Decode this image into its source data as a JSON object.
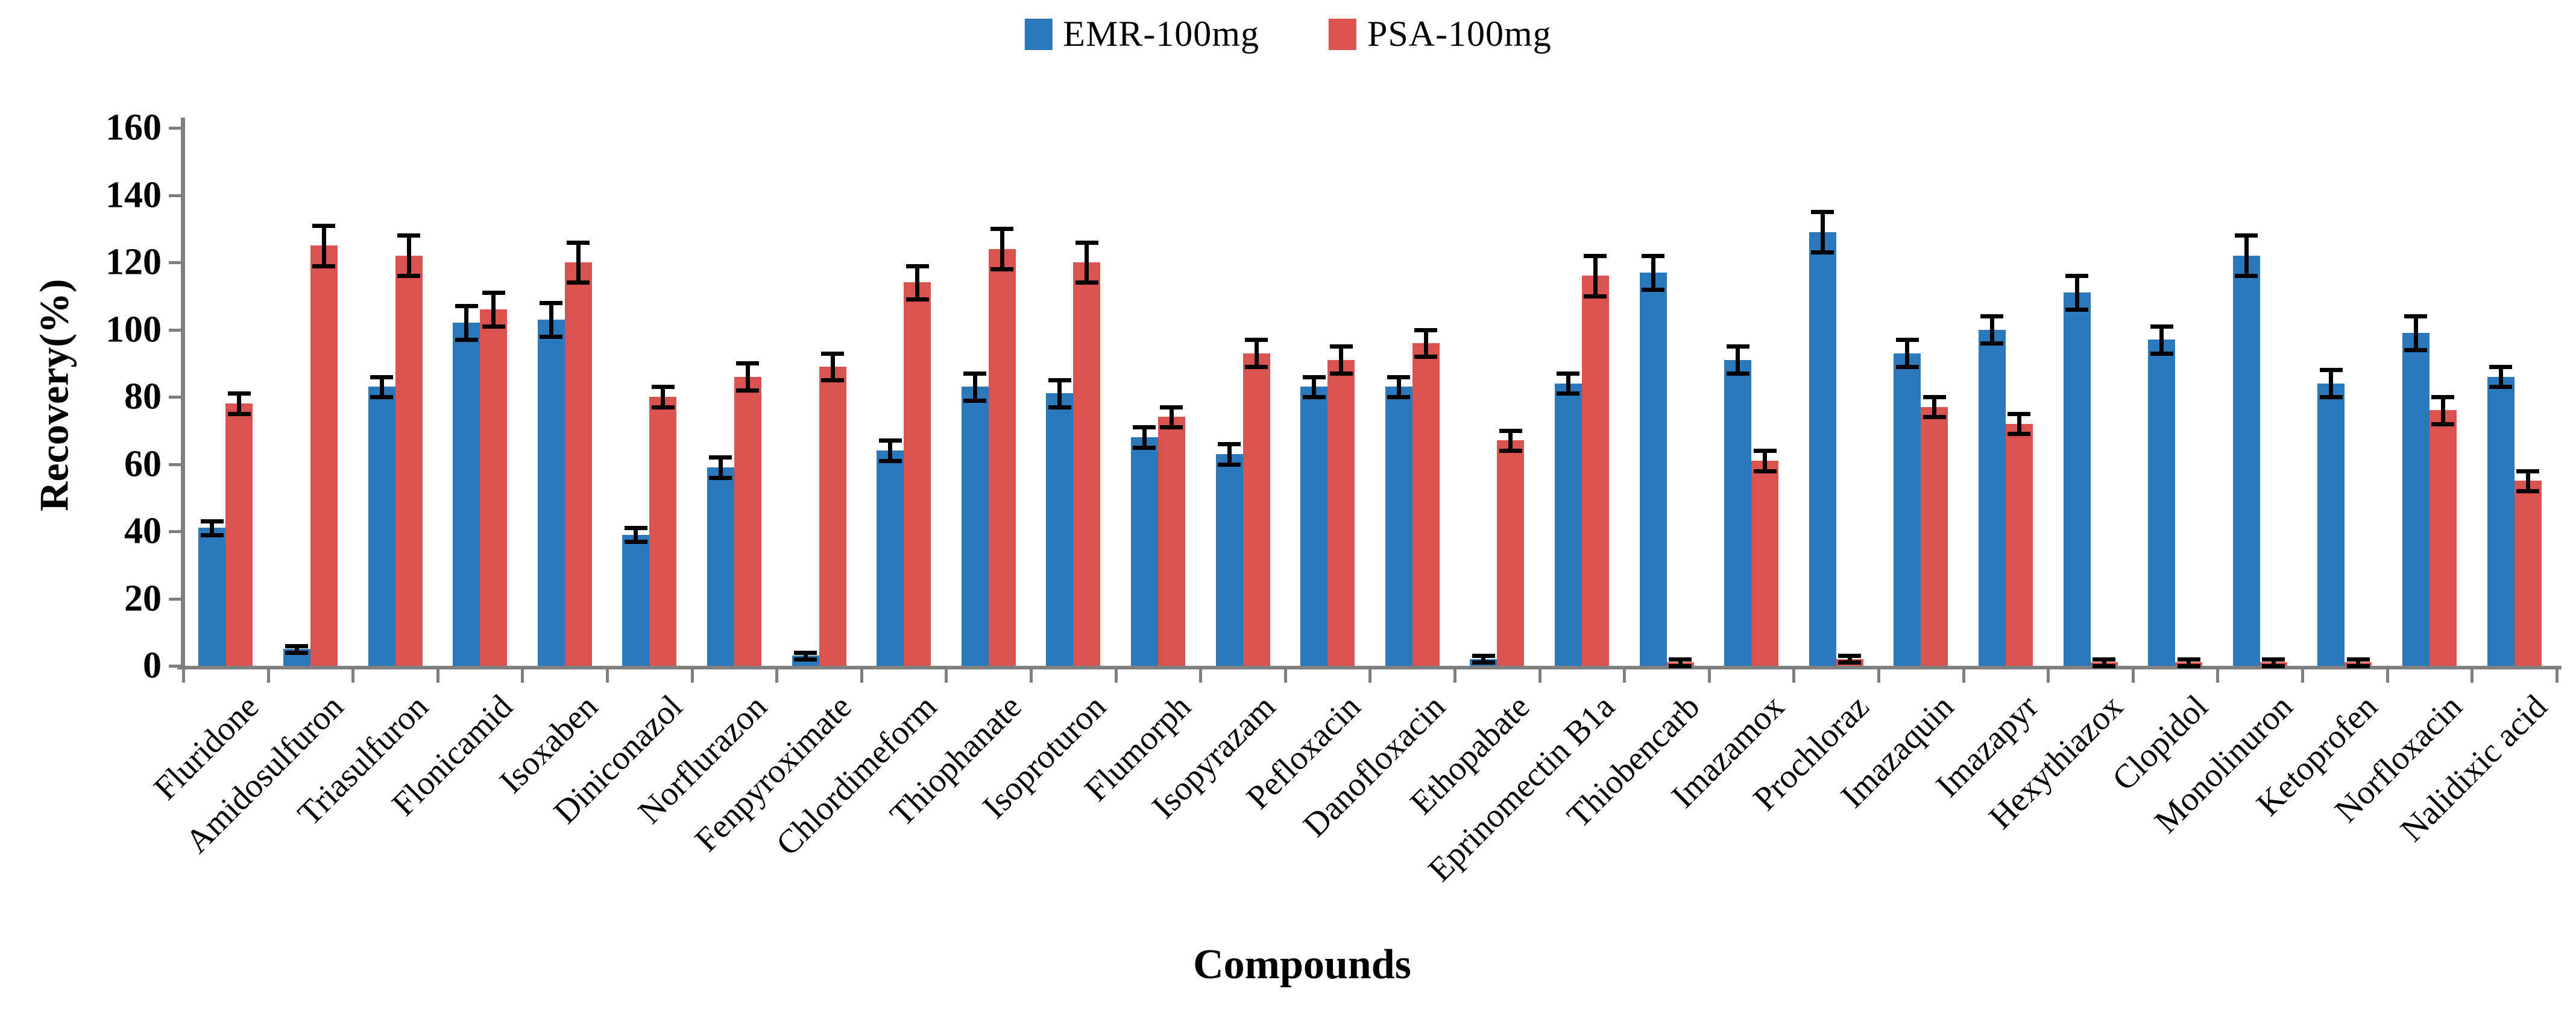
{
  "chart_data": {
    "type": "bar",
    "title": "",
    "xlabel": "Compounds",
    "ylabel": "Recovery(%)",
    "ylim": [
      0,
      160
    ],
    "ytick_step": 20,
    "ytick_labels": [
      "0",
      "20",
      "40",
      "60",
      "80",
      "100",
      "120",
      "140",
      "160"
    ],
    "grid": false,
    "legend_position": "top-center",
    "error_bars": true,
    "categories": [
      "Fluridone",
      "Amidosulfuron",
      "Triasulfuron",
      "Flonicamid",
      "Isoxaben",
      "Diniconazol",
      "Norflurazon",
      "Fenpyroximate",
      "Chlordimeform",
      "Thiophanate",
      "Isoproturon",
      "Flumorph",
      "Isopyrazam",
      "Pefloxacin",
      "Danofloxacin",
      "Ethopabate",
      "Eprinomectin B1a",
      "Thiobencarb",
      "Imazamox",
      "Prochloraz",
      "Imazaquin",
      "Imazapyr",
      "Hexythiazox",
      "Clopidol",
      "Monolinuron",
      "Ketoprofen",
      "Norfloxacin",
      "Nalidixic acid"
    ],
    "series": [
      {
        "name": "EMR-100mg",
        "color": "#2B79BC",
        "values": [
          41,
          5,
          83,
          102,
          103,
          39,
          59,
          3,
          64,
          83,
          81,
          68,
          63,
          83,
          83,
          2,
          84,
          117,
          91,
          129,
          93,
          100,
          111,
          97,
          122,
          84,
          99,
          86
        ],
        "errors": [
          2,
          1,
          3,
          5,
          5,
          2,
          3,
          1,
          3,
          4,
          4,
          3,
          3,
          3,
          3,
          1,
          3,
          5,
          4,
          6,
          4,
          4,
          5,
          4,
          6,
          4,
          5,
          3
        ]
      },
      {
        "name": "PSA-100mg",
        "color": "#D95350",
        "values": [
          78,
          125,
          122,
          106,
          120,
          80,
          86,
          89,
          114,
          124,
          120,
          74,
          93,
          91,
          96,
          67,
          116,
          1,
          61,
          2,
          77,
          72,
          1,
          1,
          1,
          1,
          76,
          55
        ],
        "errors": [
          3,
          6,
          6,
          5,
          6,
          3,
          4,
          4,
          5,
          6,
          6,
          3,
          4,
          4,
          4,
          3,
          6,
          1,
          3,
          1,
          3,
          3,
          1,
          1,
          1,
          1,
          4,
          3
        ]
      }
    ]
  },
  "legend": {
    "items": [
      {
        "label": "EMR-100mg",
        "color": "#2B79BC"
      },
      {
        "label": "PSA-100mg",
        "color": "#D95350"
      }
    ]
  },
  "axes": {
    "y_title": "Recovery(%)",
    "x_title": "Compounds",
    "axis_color": "#7f7f7f",
    "error_bar_color": "#000000"
  }
}
